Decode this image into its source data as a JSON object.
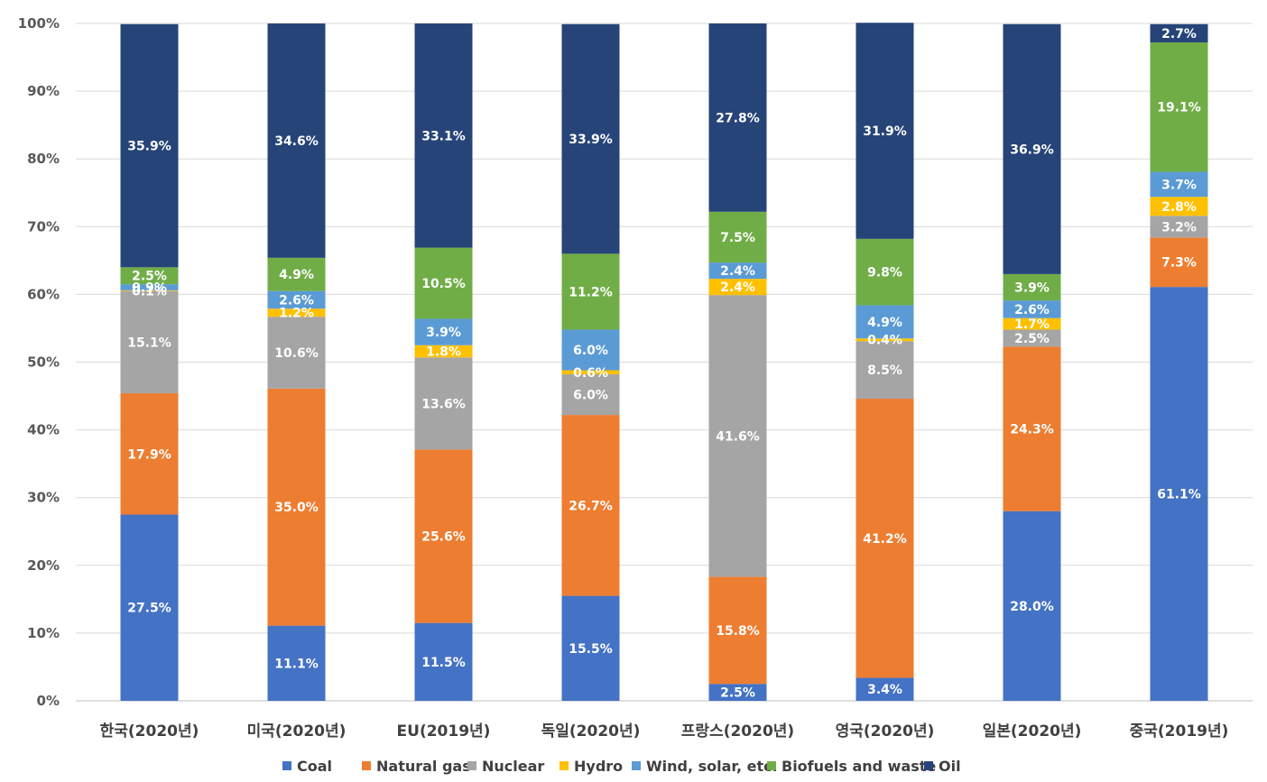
{
  "chart_data": {
    "type": "bar",
    "stacked": true,
    "normalized": true,
    "categories": [
      "한국(2020년)",
      "미국(2020년)",
      "EU(2019년)",
      "독일(2020년)",
      "프랑스(2020년)",
      "영국(2020년)",
      "일본(2020년)",
      "중국(2019년)"
    ],
    "series": [
      {
        "name": "Coal",
        "color": "#4472C4",
        "values": [
          27.5,
          11.1,
          11.5,
          15.5,
          2.5,
          3.4,
          28.0,
          61.1
        ],
        "labels": [
          "27.5%",
          "11.1%",
          "11.5%",
          "15.5%",
          "2.5%",
          "3.4%",
          "28.0%",
          "61.1%"
        ]
      },
      {
        "name": "Natural gas",
        "color": "#ED7D31",
        "values": [
          17.9,
          35.0,
          25.6,
          26.7,
          15.8,
          41.2,
          24.3,
          7.3
        ],
        "labels": [
          "17.9%",
          "35.0%",
          "25.6%",
          "26.7%",
          "15.8%",
          "41.2%",
          "24.3%",
          "7.3%"
        ]
      },
      {
        "name": "Nuclear",
        "color": "#A5A5A5",
        "values": [
          15.1,
          10.6,
          13.6,
          6.0,
          41.6,
          8.5,
          2.5,
          3.2
        ],
        "labels": [
          "15.1%",
          "10.6%",
          "13.6%",
          "6.0%",
          "41.6%",
          "8.5%",
          "2.5%",
          "3.2%"
        ]
      },
      {
        "name": "Hydro",
        "color": "#FFC000",
        "values": [
          0.1,
          1.2,
          1.8,
          0.6,
          2.4,
          0.4,
          1.7,
          2.8
        ],
        "labels": [
          "0.1%",
          "1.2%",
          "1.8%",
          "0.6%",
          "2.4%",
          "0.4%",
          "1.7%",
          "2.8%"
        ]
      },
      {
        "name": "Wind, solar, etc.",
        "color": "#5B9BD5",
        "values": [
          0.9,
          2.6,
          3.9,
          6.0,
          2.4,
          4.9,
          2.6,
          3.7
        ],
        "labels": [
          "0.9%",
          "2.6%",
          "3.9%",
          "6.0%",
          "2.4%",
          "4.9%",
          "2.6%",
          "3.7%"
        ]
      },
      {
        "name": "Biofuels and waste",
        "color": "#70AD47",
        "values": [
          2.5,
          4.9,
          10.5,
          11.2,
          7.5,
          9.8,
          3.9,
          19.1
        ],
        "labels": [
          "2.5%",
          "4.9%",
          "10.5%",
          "11.2%",
          "7.5%",
          "9.8%",
          "3.9%",
          "19.1%"
        ]
      },
      {
        "name": "Oil",
        "color": "#264478",
        "values": [
          35.9,
          34.6,
          33.1,
          33.9,
          27.8,
          31.9,
          36.9,
          2.7
        ],
        "labels": [
          "35.9%",
          "34.6%",
          "33.1%",
          "33.9%",
          "27.8%",
          "31.9%",
          "36.9%",
          "2.7%"
        ]
      }
    ],
    "yticks": [
      "0%",
      "10%",
      "20%",
      "30%",
      "40%",
      "50%",
      "60%",
      "70%",
      "80%",
      "90%",
      "100%"
    ],
    "ylim": [
      0,
      100
    ],
    "grid": true,
    "legend_position": "bottom"
  }
}
